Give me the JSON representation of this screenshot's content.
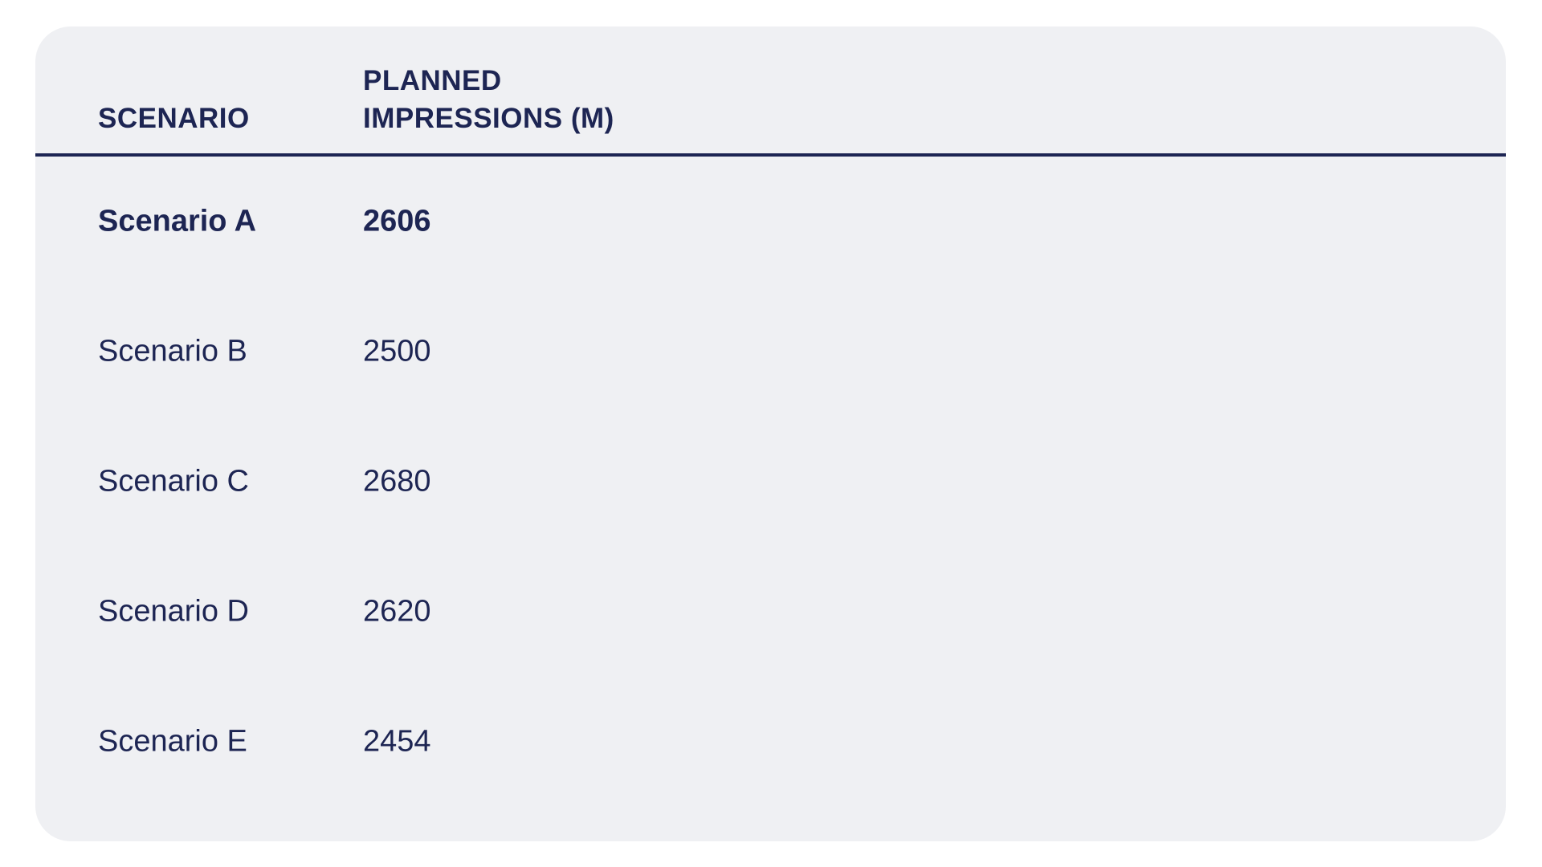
{
  "table": {
    "headers": [
      "SCENARIO",
      "PLANNED IMPRESSIONS (M)"
    ],
    "header_lines": [
      [
        "SCENARIO"
      ],
      [
        "PLANNED",
        "IMPRESSIONS (M)"
      ]
    ],
    "rows": [
      {
        "scenario": "Scenario A",
        "impressions": "2606",
        "highlighted": true
      },
      {
        "scenario": "Scenario B",
        "impressions": "2500",
        "highlighted": false
      },
      {
        "scenario": "Scenario C",
        "impressions": "2680",
        "highlighted": false
      },
      {
        "scenario": "Scenario D",
        "impressions": "2620",
        "highlighted": false
      },
      {
        "scenario": "Scenario E",
        "impressions": "2454",
        "highlighted": false
      }
    ]
  },
  "colors": {
    "text": "#1d2553",
    "card": "#eff0f3",
    "page": "#ffffff"
  }
}
